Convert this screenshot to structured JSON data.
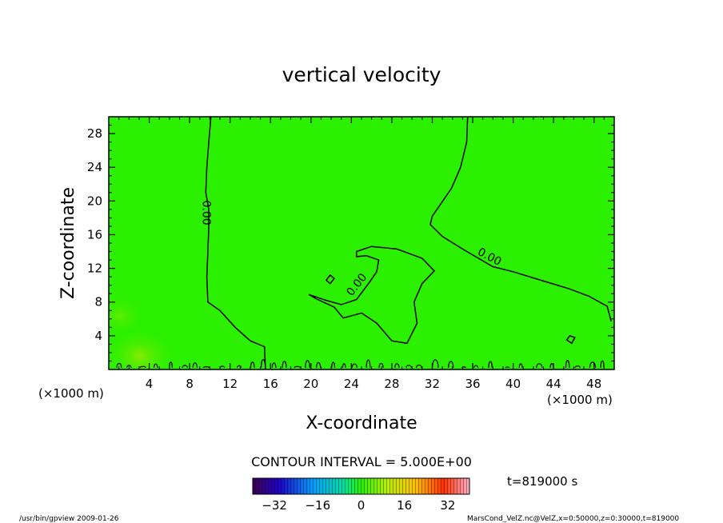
{
  "chart_data": {
    "type": "heatmap",
    "title": "vertical velocity",
    "xlabel": "X-coordinate",
    "ylabel": "Z-coordinate",
    "x_unit": "(×1000 m)",
    "y_unit": "(×1000 m)",
    "xlim": [
      0,
      50
    ],
    "ylim": [
      0,
      30
    ],
    "x_ticks": [
      4,
      8,
      12,
      16,
      20,
      24,
      28,
      32,
      36,
      40,
      44,
      48
    ],
    "y_ticks": [
      4,
      8,
      12,
      16,
      20,
      24,
      28
    ],
    "contour_interval_text": "CONTOUR INTERVAL = 5.000E+00",
    "contour_label": "0.00",
    "time_text": "t=819000 s",
    "colorbar": {
      "ticks": [
        -32,
        -16,
        0,
        16,
        32
      ],
      "range": [
        -40,
        40
      ]
    },
    "background_color": "#2bf000",
    "contours": [
      {
        "level": 0,
        "points": [
          [
            10.1,
            30
          ],
          [
            9.9,
            27
          ],
          [
            9.7,
            24
          ],
          [
            9.6,
            21
          ],
          [
            9.9,
            19
          ],
          [
            9.9,
            17
          ],
          [
            9.8,
            14
          ],
          [
            9.7,
            11
          ],
          [
            9.8,
            8
          ],
          [
            11,
            7
          ],
          [
            12.5,
            5
          ],
          [
            14,
            3.4
          ],
          [
            15.4,
            2.7
          ],
          [
            15.5,
            0
          ]
        ]
      },
      {
        "level": 0,
        "points": [
          [
            35.5,
            30
          ],
          [
            35.4,
            27
          ],
          [
            34.8,
            24
          ],
          [
            33.9,
            21.5
          ],
          [
            32,
            18.2
          ],
          [
            31.8,
            17.2
          ],
          [
            33,
            15.8
          ],
          [
            35,
            14.3
          ],
          [
            38,
            12.2
          ],
          [
            40,
            11.6
          ],
          [
            43,
            10.5
          ],
          [
            45.5,
            9.6
          ],
          [
            47.5,
            8.7
          ],
          [
            49.3,
            7.5
          ],
          [
            49.7,
            5.7
          ]
        ]
      },
      {
        "level": 0,
        "closed": true,
        "points": [
          [
            24.5,
            14
          ],
          [
            26,
            14.6
          ],
          [
            28.5,
            14.3
          ],
          [
            31,
            13.2
          ],
          [
            32.2,
            11.7
          ],
          [
            31,
            10.2
          ],
          [
            30.2,
            8
          ],
          [
            30.5,
            5.5
          ],
          [
            29.5,
            3.1
          ],
          [
            28,
            3.4
          ],
          [
            26.5,
            5.5
          ],
          [
            25,
            6.7
          ],
          [
            23.2,
            6.1
          ],
          [
            22.3,
            7.4
          ],
          [
            20.5,
            8.4
          ],
          [
            19.8,
            8.9
          ],
          [
            21.5,
            8.2
          ],
          [
            23,
            7.7
          ],
          [
            24.5,
            8.3
          ],
          [
            25.7,
            10.2
          ],
          [
            26.5,
            11.6
          ],
          [
            26.7,
            13
          ],
          [
            25.5,
            13.5
          ],
          [
            24.5,
            13.4
          ]
        ]
      },
      {
        "level": 0,
        "closed": true,
        "points": [
          [
            21.5,
            10.6
          ],
          [
            21.9,
            11.2
          ],
          [
            22.3,
            10.8
          ],
          [
            21.9,
            10.2
          ]
        ]
      },
      {
        "level": 0,
        "closed": true,
        "points": [
          [
            45.3,
            3.5
          ],
          [
            45.6,
            4
          ],
          [
            46.1,
            3.8
          ],
          [
            45.8,
            3.1
          ]
        ]
      }
    ]
  },
  "footer": {
    "program": "/usr/bin/gpview   2009-01-26",
    "file": "MarsCond_VelZ.nc@VelZ,x=0:50000,z=0:30000,t=819000"
  }
}
